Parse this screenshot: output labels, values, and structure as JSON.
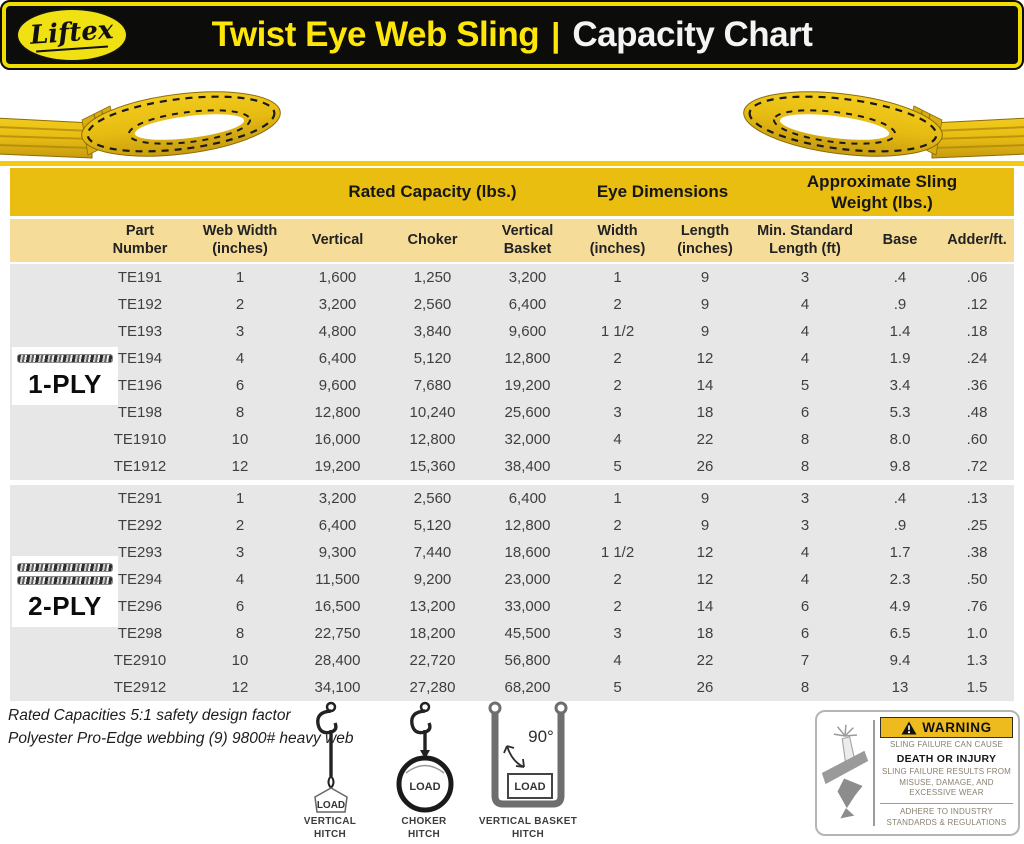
{
  "header": {
    "brand": "Liftex",
    "title": "Twist Eye Web Sling",
    "separator": "|",
    "subtitle": "Capacity Chart"
  },
  "table": {
    "group_headers": [
      "Rated Capacity (lbs.)",
      "Eye Dimensions",
      "Approximate Sling\nWeight (lbs.)"
    ],
    "columns": [
      "Part\nNumber",
      "Web Width\n(inches)",
      "Vertical",
      "Choker",
      "Vertical\nBasket",
      "Width\n(inches)",
      "Length\n(inches)",
      "Min. Standard\nLength (ft)",
      "Base",
      "Adder/ft."
    ],
    "sections": [
      {
        "ply": "1-PLY",
        "rows": [
          [
            "TE191",
            "1",
            "1,600",
            "1,250",
            "3,200",
            "1",
            "9",
            "3",
            ".4",
            ".06"
          ],
          [
            "TE192",
            "2",
            "3,200",
            "2,560",
            "6,400",
            "2",
            "9",
            "4",
            ".9",
            ".12"
          ],
          [
            "TE193",
            "3",
            "4,800",
            "3,840",
            "9,600",
            "1 1/2",
            "9",
            "4",
            "1.4",
            ".18"
          ],
          [
            "TE194",
            "4",
            "6,400",
            "5,120",
            "12,800",
            "2",
            "12",
            "4",
            "1.9",
            ".24"
          ],
          [
            "TE196",
            "6",
            "9,600",
            "7,680",
            "19,200",
            "2",
            "14",
            "5",
            "3.4",
            ".36"
          ],
          [
            "TE198",
            "8",
            "12,800",
            "10,240",
            "25,600",
            "3",
            "18",
            "6",
            "5.3",
            ".48"
          ],
          [
            "TE1910",
            "10",
            "16,000",
            "12,800",
            "32,000",
            "4",
            "22",
            "8",
            "8.0",
            ".60"
          ],
          [
            "TE1912",
            "12",
            "19,200",
            "15,360",
            "38,400",
            "5",
            "26",
            "8",
            "9.8",
            ".72"
          ]
        ]
      },
      {
        "ply": "2-PLY",
        "rows": [
          [
            "TE291",
            "1",
            "3,200",
            "2,560",
            "6,400",
            "1",
            "9",
            "3",
            ".4",
            ".13"
          ],
          [
            "TE292",
            "2",
            "6,400",
            "5,120",
            "12,800",
            "2",
            "9",
            "3",
            ".9",
            ".25"
          ],
          [
            "TE293",
            "3",
            "9,300",
            "7,440",
            "18,600",
            "1 1/2",
            "12",
            "4",
            "1.7",
            ".38"
          ],
          [
            "TE294",
            "4",
            "11,500",
            "9,200",
            "23,000",
            "2",
            "12",
            "4",
            "2.3",
            ".50"
          ],
          [
            "TE296",
            "6",
            "16,500",
            "13,200",
            "33,000",
            "2",
            "14",
            "6",
            "4.9",
            ".76"
          ],
          [
            "TE298",
            "8",
            "22,750",
            "18,200",
            "45,500",
            "3",
            "18",
            "6",
            "6.5",
            "1.0"
          ],
          [
            "TE2910",
            "10",
            "28,400",
            "22,720",
            "56,800",
            "4",
            "22",
            "7",
            "9.4",
            "1.3"
          ],
          [
            "TE2912",
            "12",
            "34,100",
            "27,280",
            "68,200",
            "5",
            "26",
            "8",
            "13",
            "1.5"
          ]
        ]
      }
    ]
  },
  "notes": [
    "Rated Capacities 5:1 safety design factor",
    "Polyester Pro-Edge webbing (9) 9800# heavy web"
  ],
  "diagrams": [
    {
      "label": "VERTICAL\nHITCH",
      "load": "LOAD"
    },
    {
      "label": "CHOKER\nHITCH",
      "load": "LOAD"
    },
    {
      "label": "VERTICAL BASKET\nHITCH",
      "load": "LOAD",
      "angle": "90°"
    }
  ],
  "warning": {
    "banner": "WARNING",
    "cause": "SLING FAILURE CAN CAUSE",
    "consequence": "DEATH OR INJURY",
    "reason": "SLING FAILURE RESULTS FROM\nMISUSE, DAMAGE, AND\nEXCESSIVE WEAR",
    "adherence": "ADHERE TO INDUSTRY\nSTANDARDS & REGULATIONS"
  },
  "colors": {
    "brand_yellow": "#ffe60a",
    "header_black": "#0c0c0b",
    "gold_band": "#e9be10",
    "subheader_band": "#f5dd99",
    "row_gray": "#e7e7e7",
    "warning_banner": "#edbb1d",
    "sling_web_yellow": "#e7bc12"
  }
}
